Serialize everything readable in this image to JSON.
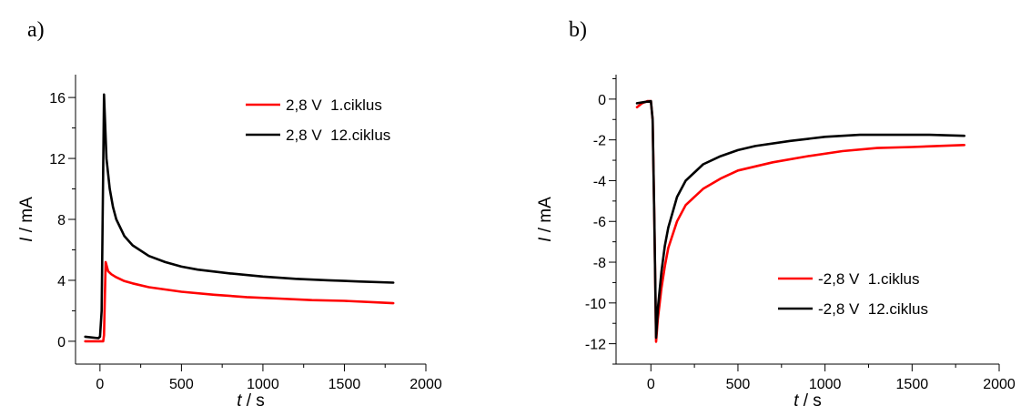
{
  "chart_data": [
    {
      "panel": "a)",
      "type": "line",
      "title": "",
      "xlabel": {
        "var": "t",
        "unit": " / s"
      },
      "ylabel": {
        "var": "I",
        "unit": " / mA"
      },
      "xlim": [
        -150,
        2000
      ],
      "ylim": [
        -1.5,
        17.5
      ],
      "xticks": [
        0,
        500,
        1000,
        1500,
        2000
      ],
      "yticks": [
        0,
        4,
        8,
        12,
        16
      ],
      "grid": false,
      "legend": "top-right",
      "series": [
        {
          "name": "2,8 V  1.ciklus",
          "color": "#ff0000",
          "x": [
            -90,
            0,
            20,
            25,
            35,
            50,
            70,
            100,
            150,
            200,
            300,
            400,
            500,
            700,
            900,
            1100,
            1300,
            1500,
            1700,
            1800
          ],
          "y": [
            0,
            0,
            0,
            0.4,
            5.2,
            4.6,
            4.4,
            4.2,
            3.95,
            3.8,
            3.55,
            3.4,
            3.25,
            3.05,
            2.9,
            2.8,
            2.7,
            2.65,
            2.55,
            2.5
          ]
        },
        {
          "name": "2,8 V  12.ciklus",
          "color": "#000000",
          "x": [
            -90,
            -10,
            0,
            10,
            25,
            40,
            60,
            80,
            100,
            150,
            200,
            300,
            400,
            500,
            600,
            800,
            1000,
            1200,
            1400,
            1600,
            1800
          ],
          "y": [
            0.3,
            0.2,
            0.3,
            2.0,
            16.2,
            12.0,
            10.0,
            8.8,
            8.0,
            6.9,
            6.3,
            5.6,
            5.2,
            4.9,
            4.7,
            4.45,
            4.25,
            4.1,
            4.0,
            3.92,
            3.85
          ]
        }
      ]
    },
    {
      "panel": "b)",
      "type": "line",
      "title": "",
      "xlabel": {
        "var": "t",
        "unit": " / s"
      },
      "ylabel": {
        "var": "I",
        "unit": " / mA"
      },
      "xlim": [
        -200,
        2000
      ],
      "ylim": [
        -13,
        1.2
      ],
      "xticks": [
        0,
        500,
        1000,
        1500,
        2000
      ],
      "yticks": [
        0,
        -2,
        -4,
        -6,
        -8,
        -10,
        -12
      ],
      "grid": false,
      "legend": "bottom-right",
      "series": [
        {
          "name": "-2,8 V  1.ciklus",
          "color": "#ff0000",
          "x": [
            -80,
            -50,
            -20,
            0,
            10,
            20,
            30,
            40,
            60,
            80,
            100,
            150,
            200,
            300,
            400,
            500,
            700,
            900,
            1100,
            1300,
            1500,
            1800
          ],
          "y": [
            -0.4,
            -0.2,
            -0.1,
            -0.1,
            -1.0,
            -6.0,
            -11.9,
            -10.8,
            -9.3,
            -8.2,
            -7.3,
            -6.0,
            -5.2,
            -4.4,
            -3.9,
            -3.5,
            -3.1,
            -2.8,
            -2.55,
            -2.4,
            -2.35,
            -2.25
          ]
        },
        {
          "name": "-2,8 V  12.ciklus",
          "color": "#000000",
          "x": [
            -80,
            -40,
            0,
            10,
            20,
            30,
            40,
            60,
            80,
            100,
            150,
            200,
            300,
            400,
            500,
            600,
            800,
            1000,
            1200,
            1400,
            1600,
            1800
          ],
          "y": [
            -0.2,
            -0.15,
            -0.1,
            -1.0,
            -6.0,
            -11.7,
            -10.3,
            -8.5,
            -7.2,
            -6.3,
            -4.8,
            -4.0,
            -3.2,
            -2.8,
            -2.5,
            -2.3,
            -2.05,
            -1.85,
            -1.75,
            -1.75,
            -1.75,
            -1.8
          ]
        }
      ]
    }
  ]
}
